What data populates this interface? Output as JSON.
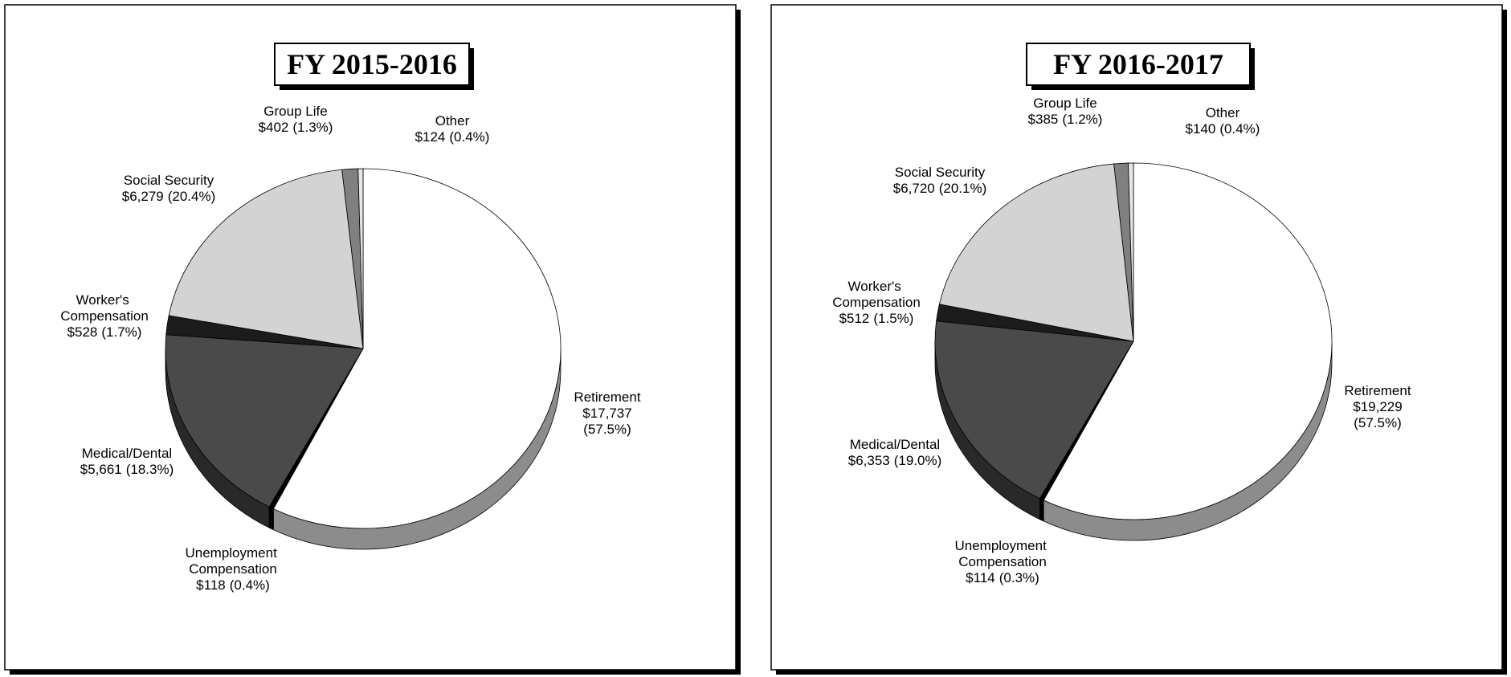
{
  "chart_data": [
    {
      "type": "pie",
      "title": "FY 2015-2016",
      "categories": [
        "Retirement",
        "Unemployment Compensation",
        "Medical/Dental",
        "Worker's Compensation",
        "Social Security",
        "Group Life",
        "Other"
      ],
      "values": [
        17737,
        118,
        5661,
        528,
        6279,
        402,
        124
      ],
      "value_labels": [
        "$17,737",
        "$118",
        "$5,661",
        "$528",
        "$6,279",
        "$402",
        "$124"
      ],
      "percents": [
        57.5,
        0.4,
        18.3,
        1.7,
        20.4,
        1.3,
        0.4
      ],
      "percent_labels": [
        "(57.5%)",
        "(0.4%)",
        "(18.3%)",
        "(1.7%)",
        "(20.4%)",
        "(1.3%)",
        "(0.4%)"
      ],
      "colors": [
        "#ffffff",
        "#000000",
        "#4a4a4a",
        "#1c1c1c",
        "#d3d3d3",
        "#808080",
        "#e6e6e6"
      ]
    },
    {
      "type": "pie",
      "title": "FY 2016-2017",
      "categories": [
        "Retirement",
        "Unemployment Compensation",
        "Medical/Dental",
        "Worker's Compensation",
        "Social Security",
        "Group Life",
        "Other"
      ],
      "values": [
        19229,
        114,
        6353,
        512,
        6720,
        385,
        140
      ],
      "value_labels": [
        "$19,229",
        "$114",
        "$6,353",
        "$512",
        "$6,720",
        "$385",
        "$140"
      ],
      "percents": [
        57.5,
        0.3,
        19.0,
        1.5,
        20.1,
        1.2,
        0.4
      ],
      "percent_labels": [
        "(57.5%)",
        "(0.3%)",
        "(19.0%)",
        "(1.5%)",
        "(20.1%)",
        "(1.2%)",
        "(0.4%)"
      ],
      "colors": [
        "#ffffff",
        "#000000",
        "#4a4a4a",
        "#1c1c1c",
        "#d3d3d3",
        "#808080",
        "#e6e6e6"
      ]
    }
  ]
}
